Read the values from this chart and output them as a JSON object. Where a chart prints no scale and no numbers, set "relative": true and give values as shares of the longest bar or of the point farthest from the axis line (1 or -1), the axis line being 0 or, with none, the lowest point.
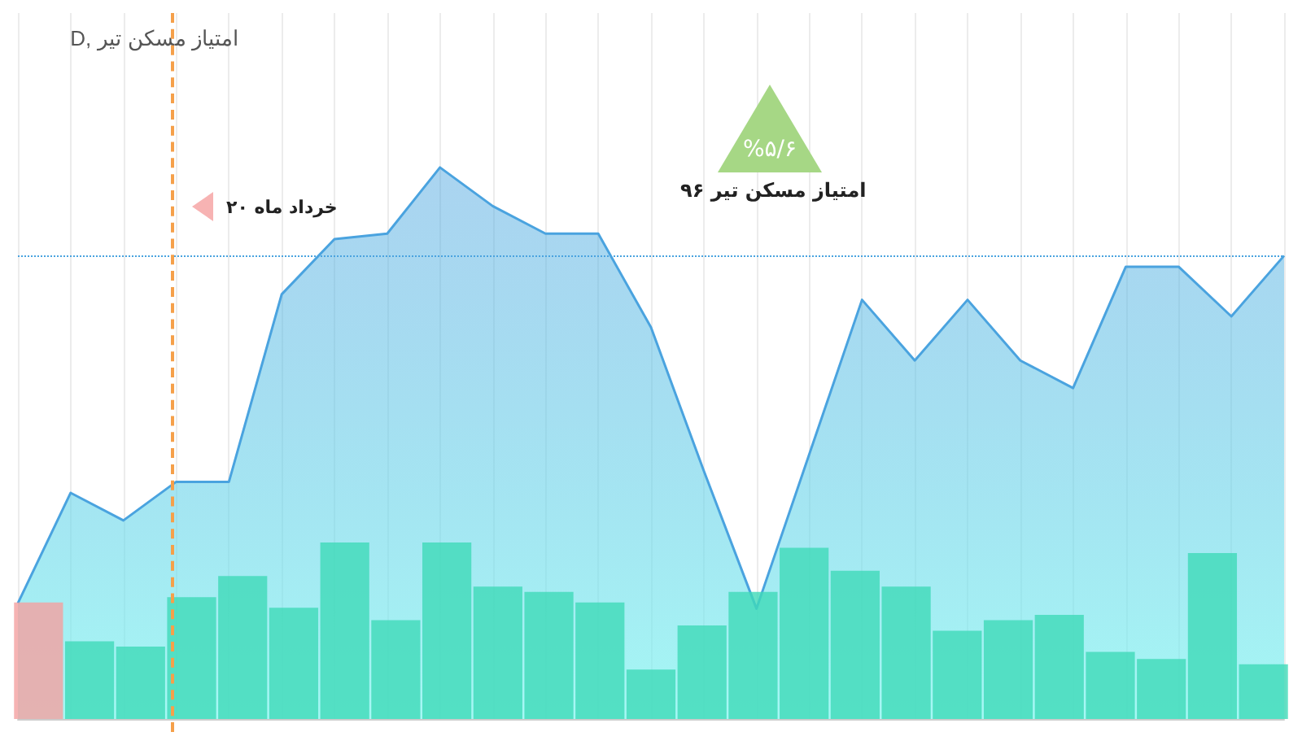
{
  "chart_data": [
    {
      "type": "area",
      "title": "D, امتیاز مسکن تیر",
      "relative": true,
      "grid": "x",
      "color": "#4aa3df",
      "categories": [
        null,
        null,
        null,
        null,
        null,
        null,
        null,
        null,
        null,
        null,
        null,
        null,
        null,
        null,
        null,
        null,
        null,
        null,
        null,
        null,
        null,
        null,
        null,
        null,
        null
      ],
      "values": [
        0.21,
        0.41,
        0.36,
        0.43,
        0.43,
        0.77,
        0.87,
        0.88,
        1,
        0.93,
        0.88,
        0.88,
        0.71,
        0.45,
        0.2,
        0.48,
        0.76,
        0.65,
        0.76,
        0.65,
        0.6,
        0.82,
        0.82,
        0.73,
        0.84
      ],
      "ref_lines": [
        {
          "axis": "y",
          "value": 0.84,
          "color": "#4aa3df",
          "line_style": "dotted"
        }
      ],
      "annotations": [
        "۲۰ خرداد ماه",
        "%۵/۶",
        "امتیاز مسکن تیر ۹۶"
      ]
    },
    {
      "type": "bar",
      "relative": true,
      "categories": [
        null,
        null,
        null,
        null,
        null,
        null,
        null,
        null,
        null,
        null,
        null,
        null,
        null,
        null,
        null,
        null,
        null,
        null,
        null,
        null,
        null,
        null,
        null,
        null,
        null
      ],
      "colors": [
        "#f4a0a0",
        "#3fd9b8",
        "#3fd9b8",
        "#3fd9b8",
        "#3fd9b8",
        "#3fd9b8",
        "#3fd9b8",
        "#3fd9b8",
        "#3fd9b8",
        "#3fd9b8",
        "#3fd9b8",
        "#3fd9b8",
        "#3fd9b8",
        "#3fd9b8",
        "#3fd9b8",
        "#3fd9b8",
        "#3fd9b8",
        "#3fd9b8",
        "#3fd9b8",
        "#3fd9b8",
        "#3fd9b8",
        "#3fd9b8",
        "#3fd9b8",
        "#3fd9b8",
        "#3fd9b8"
      ],
      "values": [
        0.66,
        0.44,
        0.41,
        0.69,
        0.81,
        0.63,
        1,
        0.56,
        1,
        0.75,
        0.72,
        0.66,
        0.28,
        0.53,
        0.72,
        0.97,
        0.84,
        0.75,
        0.5,
        0.56,
        0.59,
        0.38,
        0.34,
        0.94,
        0.31
      ]
    }
  ]
}
